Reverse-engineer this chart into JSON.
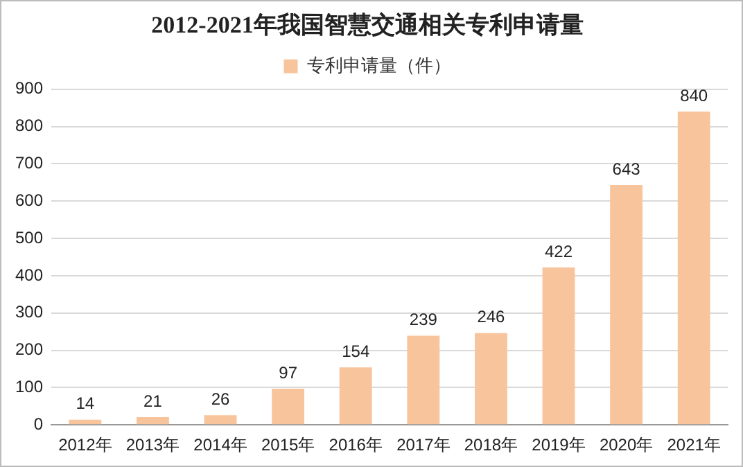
{
  "chart_data": {
    "type": "bar",
    "title": "2012-2021年我国智慧交通相关专利申请量",
    "categories": [
      "2012年",
      "2013年",
      "2014年",
      "2015年",
      "2016年",
      "2017年",
      "2018年",
      "2019年",
      "2020年",
      "2021年"
    ],
    "series": [
      {
        "name": "专利申请量（件）",
        "color": "#f8c49c",
        "values": [
          14,
          21,
          26,
          97,
          154,
          239,
          246,
          422,
          643,
          840
        ]
      }
    ],
    "ylim": [
      0,
      900
    ],
    "yticks": [
      0,
      100,
      200,
      300,
      400,
      500,
      600,
      700,
      800,
      900
    ],
    "grid": "y",
    "legend": "top",
    "data_labels": true
  }
}
